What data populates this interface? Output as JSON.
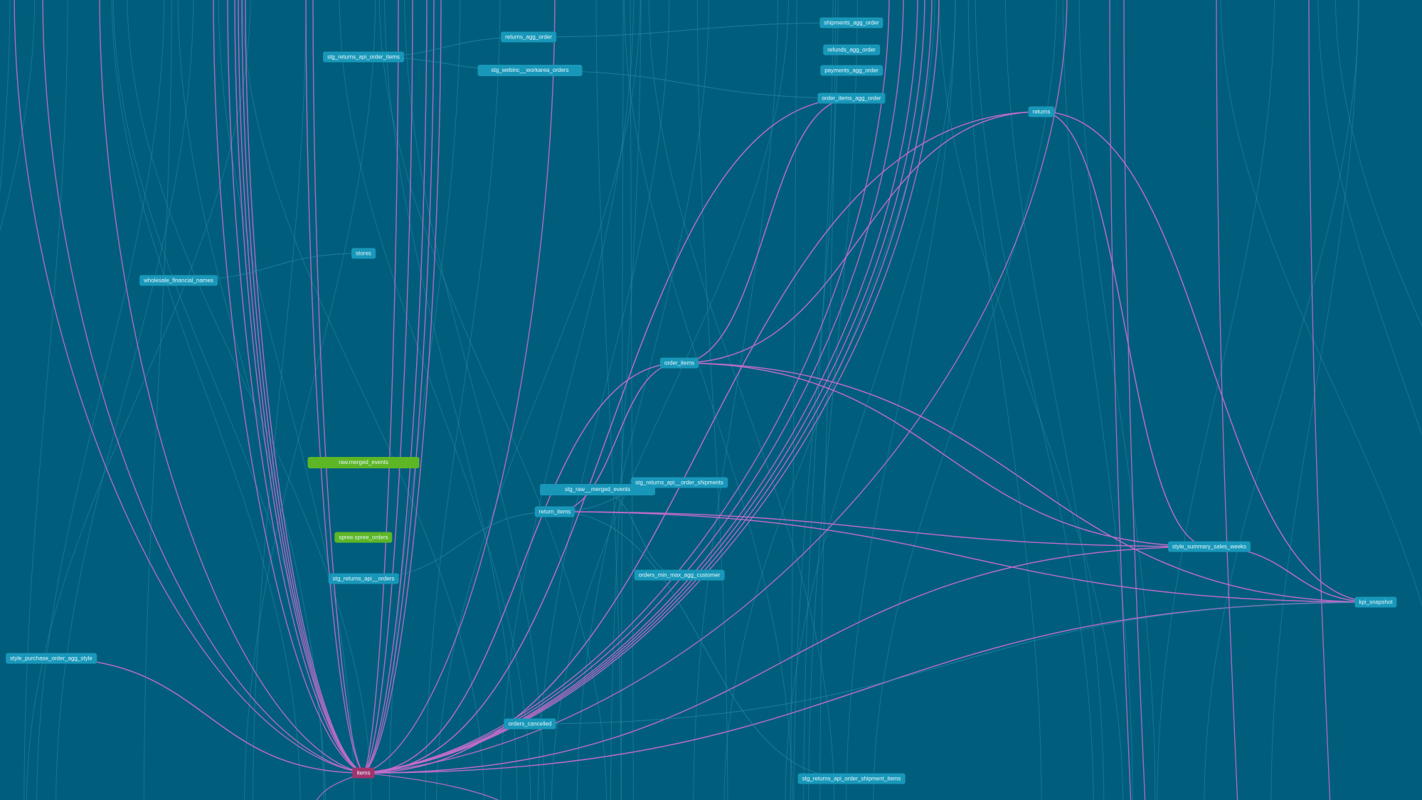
{
  "colors": {
    "background": "#005e7c",
    "model_node": "#1897b9",
    "source_node": "#5db626",
    "selected_node": "#a1336c",
    "highlighted_edge": "#c36ccb",
    "edge": "#2a8aa6"
  },
  "nodes": [
    {
      "id": "returns_agg_order",
      "label": "returns_agg_order",
      "type": "model"
    },
    {
      "id": "stg_returns_api_order_items",
      "label": "stg_returns_api_order_items",
      "type": "model"
    },
    {
      "id": "stg_webinc__workarea_orders",
      "label": "stg_webinc__workarea_orders",
      "type": "model"
    },
    {
      "id": "shipments_agg_order",
      "label": "shipments_agg_order",
      "type": "model"
    },
    {
      "id": "refunds_agg_order",
      "label": "refunds_agg_order",
      "type": "model"
    },
    {
      "id": "payments_agg_order",
      "label": "payments_agg_order",
      "type": "model"
    },
    {
      "id": "order_items_agg_order",
      "label": "order_items_agg_order",
      "type": "model"
    },
    {
      "id": "returns",
      "label": "returns",
      "type": "model"
    },
    {
      "id": "stores",
      "label": "stores",
      "type": "model"
    },
    {
      "id": "wholesale_financial_names",
      "label": "wholesale_financial_names",
      "type": "model"
    },
    {
      "id": "order_items",
      "label": "order_items",
      "type": "model"
    },
    {
      "id": "raw_merged_events",
      "label": "raw.merged_events",
      "type": "source"
    },
    {
      "id": "spree_spree_orders",
      "label": "spree.spree_orders",
      "type": "source"
    },
    {
      "id": "stg_raw__merged_events",
      "label": "stg_raw__merged_events",
      "type": "model"
    },
    {
      "id": "stg_returns_api__order_shipments",
      "label": "stg_returns_api__order_shipments",
      "type": "model"
    },
    {
      "id": "return_items",
      "label": "return_items",
      "type": "model"
    },
    {
      "id": "orders_min_max_agg_customer",
      "label": "orders_min_max_agg_customer",
      "type": "model"
    },
    {
      "id": "stg_returns_api__orders",
      "label": "stg_returns_api__orders",
      "type": "model"
    },
    {
      "id": "style_summary_sales_weeks",
      "label": "style_summary_sales_weeks",
      "type": "model"
    },
    {
      "id": "kpi_snapshot",
      "label": "kpi_snapshot",
      "type": "model"
    },
    {
      "id": "style_purchase_order_agg_style",
      "label": "style_purchase_order_agg_style",
      "type": "model"
    },
    {
      "id": "orders_cancelled",
      "label": "orders_cancelled",
      "type": "model"
    },
    {
      "id": "items",
      "label": "items",
      "type": "selected"
    },
    {
      "id": "stg_returns_api_order_shipment_items",
      "label": "stg_returns_api_order_shipment_items",
      "type": "model"
    }
  ],
  "edges": [
    {
      "from": "items",
      "to": "order_items",
      "highlighted": true
    },
    {
      "from": "items",
      "to": "style_summary_sales_weeks",
      "highlighted": true
    },
    {
      "from": "items",
      "to": "kpi_snapshot",
      "highlighted": true
    },
    {
      "from": "items",
      "to": "order_items_agg_order",
      "highlighted": true
    },
    {
      "from": "items",
      "to": "style_purchase_order_agg_style",
      "highlighted": true
    },
    {
      "from": "items",
      "to": "returns",
      "highlighted": true
    },
    {
      "from": "order_items",
      "to": "order_items_agg_order",
      "highlighted": true
    },
    {
      "from": "order_items",
      "to": "returns",
      "highlighted": true
    },
    {
      "from": "order_items",
      "to": "style_summary_sales_weeks",
      "highlighted": true
    },
    {
      "from": "order_items",
      "to": "kpi_snapshot",
      "highlighted": true
    },
    {
      "from": "return_items",
      "to": "order_items",
      "highlighted": true
    },
    {
      "from": "return_items",
      "to": "style_summary_sales_weeks",
      "highlighted": true
    },
    {
      "from": "return_items",
      "to": "kpi_snapshot",
      "highlighted": true
    },
    {
      "from": "returns",
      "to": "style_summary_sales_weeks",
      "highlighted": true
    },
    {
      "from": "returns",
      "to": "kpi_snapshot",
      "highlighted": true
    },
    {
      "from": "style_summary_sales_weeks",
      "to": "kpi_snapshot",
      "highlighted": true
    },
    {
      "from": "stg_returns_api_order_items",
      "to": "returns_agg_order",
      "highlighted": false
    },
    {
      "from": "stg_returns_api_order_items",
      "to": "stg_webinc__workarea_orders",
      "highlighted": false
    },
    {
      "from": "returns_agg_order",
      "to": "shipments_agg_order",
      "highlighted": false
    },
    {
      "from": "stg_webinc__workarea_orders",
      "to": "order_items_agg_order",
      "highlighted": false
    },
    {
      "from": "wholesale_financial_names",
      "to": "stores",
      "highlighted": false
    },
    {
      "from": "stg_returns_api__orders",
      "to": "return_items",
      "highlighted": false
    },
    {
      "from": "stg_returns_api__order_shipments",
      "to": "return_items",
      "highlighted": false
    },
    {
      "from": "stg_raw__merged_events",
      "to": "orders_min_max_agg_customer",
      "highlighted": false
    },
    {
      "from": "orders_cancelled",
      "to": "kpi_snapshot",
      "highlighted": false
    },
    {
      "from": "stg_returns_api_order_shipment_items",
      "to": "return_items",
      "highlighted": false
    }
  ]
}
